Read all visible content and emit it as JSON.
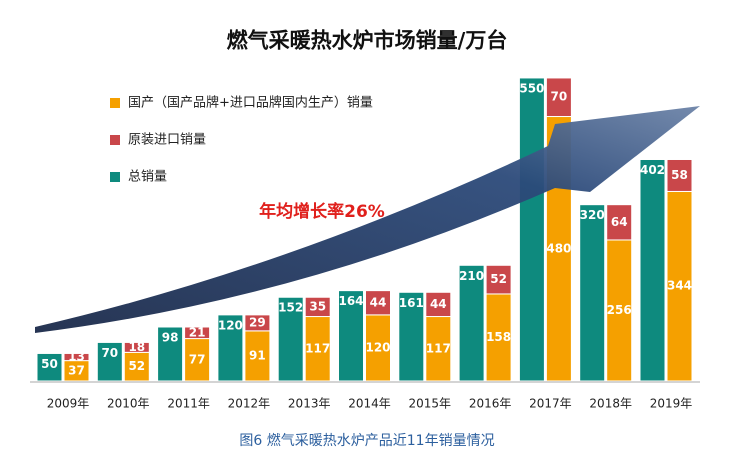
{
  "chart_data": {
    "type": "bar",
    "title": "燃气采暖热水炉市场销量/万台",
    "annotation": "年均增长率26%",
    "caption": "图6 燃气采暖热水炉产品近11年销量情况",
    "categories": [
      "2009年",
      "2010年",
      "2011年",
      "2012年",
      "2013年",
      "2014年",
      "2015年",
      "2016年",
      "2017年",
      "2018年",
      "2019年"
    ],
    "series": [
      {
        "name": "国产（国产品牌+进口品牌国内生产）销量",
        "color": "#f5a000",
        "values": [
          37,
          52,
          77,
          91,
          117,
          120,
          117,
          158,
          480,
          256,
          344
        ]
      },
      {
        "name": "原装进口销量",
        "color": "#c9474a",
        "values": [
          13,
          18,
          21,
          29,
          35,
          44,
          44,
          52,
          70,
          64,
          58
        ]
      },
      {
        "name": "总销量",
        "color": "#0e8a7e",
        "values": [
          50,
          70,
          98,
          120,
          152,
          164,
          161,
          210,
          550,
          320,
          402
        ]
      }
    ]
  }
}
